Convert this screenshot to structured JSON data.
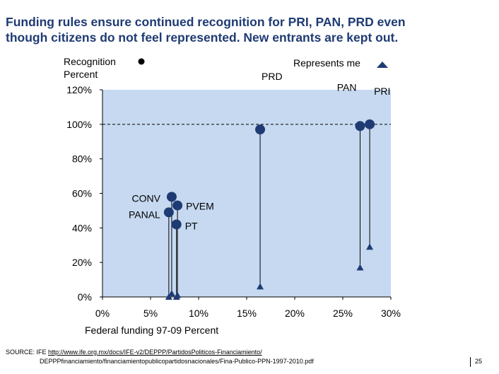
{
  "title_line1": "Funding rules ensure continued recognition for PRI, PAN, PRD even",
  "title_line2": "though citizens do not feel represented.  New entrants are kept out.",
  "source": {
    "label": "SOURCE: IFE",
    "url_line1": "http://www.ife.org.mx/docs/IFE-v2/DEPPP/PartidosPoliticos-Financiamiento/",
    "url_line2": "DEPPPfinanciamiento/financiamientopublicopartidosnacionales/Fina-Publico-PPN-1997-2010.pdf"
  },
  "page_number": "25",
  "colors": {
    "plot_bg": "#c6d9f1",
    "marker": "#1f3b73",
    "title": "#1f3b73",
    "reference_line": "#000000"
  },
  "chart_data": {
    "type": "scatter",
    "title": "",
    "ylabel_line1": "Recognition",
    "ylabel_line2": "Percent",
    "xlabel": "Federal funding 97-09 Percent",
    "legend_right": "Represents me",
    "xlim": [
      0,
      30
    ],
    "ylim": [
      0,
      120
    ],
    "x_ticks": [
      "0%",
      "5%",
      "10%",
      "15%",
      "20%",
      "25%",
      "30%"
    ],
    "y_ticks": [
      "0%",
      "20%",
      "40%",
      "60%",
      "80%",
      "100%",
      "120%"
    ],
    "grid": false,
    "reference_line_y": 100,
    "series": [
      {
        "name": "Recognition",
        "marker": "circle",
        "points": [
          {
            "label": "PRI",
            "x": 27.8,
            "y": 100
          },
          {
            "label": "PAN",
            "x": 26.8,
            "y": 99
          },
          {
            "label": "PRD",
            "x": 16.4,
            "y": 97
          },
          {
            "label": "CONV",
            "x": 7.2,
            "y": 58
          },
          {
            "label": "PANAL",
            "x": 6.9,
            "y": 49
          },
          {
            "label": "PVEM",
            "x": 7.8,
            "y": 53
          },
          {
            "label": "PT",
            "x": 7.7,
            "y": 42
          }
        ]
      },
      {
        "name": "Represents me",
        "marker": "triangle",
        "points": [
          {
            "label": "PRI",
            "x": 27.8,
            "y": 29
          },
          {
            "label": "PAN",
            "x": 26.8,
            "y": 17
          },
          {
            "label": "PRD",
            "x": 16.4,
            "y": 6
          },
          {
            "label": "CONV",
            "x": 7.2,
            "y": 2
          },
          {
            "label": "PANAL",
            "x": 6.9,
            "y": 0
          },
          {
            "label": "PVEM",
            "x": 7.8,
            "y": 1
          },
          {
            "label": "PT",
            "x": 7.7,
            "y": 0
          }
        ]
      }
    ]
  }
}
